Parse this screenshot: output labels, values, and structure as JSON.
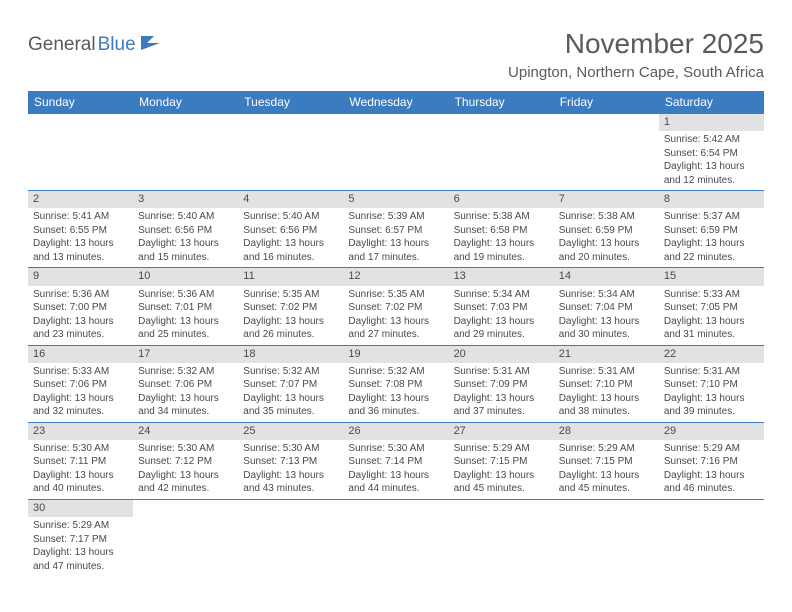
{
  "logo": {
    "part1": "General",
    "part2": "Blue"
  },
  "title": "November 2025",
  "location": "Upington, Northern Cape, South Africa",
  "colors": {
    "header_bg": "#3b7bbf",
    "header_text": "#ffffff",
    "daynum_bg": "#e2e2e2",
    "text": "#4a4a4a",
    "logo_blue": "#3b7bbf",
    "page_bg": "#ffffff",
    "week_border": "#3b7bbf"
  },
  "day_labels": [
    "Sunday",
    "Monday",
    "Tuesday",
    "Wednesday",
    "Thursday",
    "Friday",
    "Saturday"
  ],
  "weeks": [
    [
      null,
      null,
      null,
      null,
      null,
      null,
      {
        "n": "1",
        "sr": "5:42 AM",
        "ss": "6:54 PM",
        "dl": "13 hours and 12 minutes."
      }
    ],
    [
      {
        "n": "2",
        "sr": "5:41 AM",
        "ss": "6:55 PM",
        "dl": "13 hours and 13 minutes."
      },
      {
        "n": "3",
        "sr": "5:40 AM",
        "ss": "6:56 PM",
        "dl": "13 hours and 15 minutes."
      },
      {
        "n": "4",
        "sr": "5:40 AM",
        "ss": "6:56 PM",
        "dl": "13 hours and 16 minutes."
      },
      {
        "n": "5",
        "sr": "5:39 AM",
        "ss": "6:57 PM",
        "dl": "13 hours and 17 minutes."
      },
      {
        "n": "6",
        "sr": "5:38 AM",
        "ss": "6:58 PM",
        "dl": "13 hours and 19 minutes."
      },
      {
        "n": "7",
        "sr": "5:38 AM",
        "ss": "6:59 PM",
        "dl": "13 hours and 20 minutes."
      },
      {
        "n": "8",
        "sr": "5:37 AM",
        "ss": "6:59 PM",
        "dl": "13 hours and 22 minutes."
      }
    ],
    [
      {
        "n": "9",
        "sr": "5:36 AM",
        "ss": "7:00 PM",
        "dl": "13 hours and 23 minutes."
      },
      {
        "n": "10",
        "sr": "5:36 AM",
        "ss": "7:01 PM",
        "dl": "13 hours and 25 minutes."
      },
      {
        "n": "11",
        "sr": "5:35 AM",
        "ss": "7:02 PM",
        "dl": "13 hours and 26 minutes."
      },
      {
        "n": "12",
        "sr": "5:35 AM",
        "ss": "7:02 PM",
        "dl": "13 hours and 27 minutes."
      },
      {
        "n": "13",
        "sr": "5:34 AM",
        "ss": "7:03 PM",
        "dl": "13 hours and 29 minutes."
      },
      {
        "n": "14",
        "sr": "5:34 AM",
        "ss": "7:04 PM",
        "dl": "13 hours and 30 minutes."
      },
      {
        "n": "15",
        "sr": "5:33 AM",
        "ss": "7:05 PM",
        "dl": "13 hours and 31 minutes."
      }
    ],
    [
      {
        "n": "16",
        "sr": "5:33 AM",
        "ss": "7:06 PM",
        "dl": "13 hours and 32 minutes."
      },
      {
        "n": "17",
        "sr": "5:32 AM",
        "ss": "7:06 PM",
        "dl": "13 hours and 34 minutes."
      },
      {
        "n": "18",
        "sr": "5:32 AM",
        "ss": "7:07 PM",
        "dl": "13 hours and 35 minutes."
      },
      {
        "n": "19",
        "sr": "5:32 AM",
        "ss": "7:08 PM",
        "dl": "13 hours and 36 minutes."
      },
      {
        "n": "20",
        "sr": "5:31 AM",
        "ss": "7:09 PM",
        "dl": "13 hours and 37 minutes."
      },
      {
        "n": "21",
        "sr": "5:31 AM",
        "ss": "7:10 PM",
        "dl": "13 hours and 38 minutes."
      },
      {
        "n": "22",
        "sr": "5:31 AM",
        "ss": "7:10 PM",
        "dl": "13 hours and 39 minutes."
      }
    ],
    [
      {
        "n": "23",
        "sr": "5:30 AM",
        "ss": "7:11 PM",
        "dl": "13 hours and 40 minutes."
      },
      {
        "n": "24",
        "sr": "5:30 AM",
        "ss": "7:12 PM",
        "dl": "13 hours and 42 minutes."
      },
      {
        "n": "25",
        "sr": "5:30 AM",
        "ss": "7:13 PM",
        "dl": "13 hours and 43 minutes."
      },
      {
        "n": "26",
        "sr": "5:30 AM",
        "ss": "7:14 PM",
        "dl": "13 hours and 44 minutes."
      },
      {
        "n": "27",
        "sr": "5:29 AM",
        "ss": "7:15 PM",
        "dl": "13 hours and 45 minutes."
      },
      {
        "n": "28",
        "sr": "5:29 AM",
        "ss": "7:15 PM",
        "dl": "13 hours and 45 minutes."
      },
      {
        "n": "29",
        "sr": "5:29 AM",
        "ss": "7:16 PM",
        "dl": "13 hours and 46 minutes."
      }
    ],
    [
      {
        "n": "30",
        "sr": "5:29 AM",
        "ss": "7:17 PM",
        "dl": "13 hours and 47 minutes."
      },
      null,
      null,
      null,
      null,
      null,
      null
    ]
  ],
  "labels": {
    "sunrise": "Sunrise:",
    "sunset": "Sunset:",
    "daylight": "Daylight:"
  }
}
